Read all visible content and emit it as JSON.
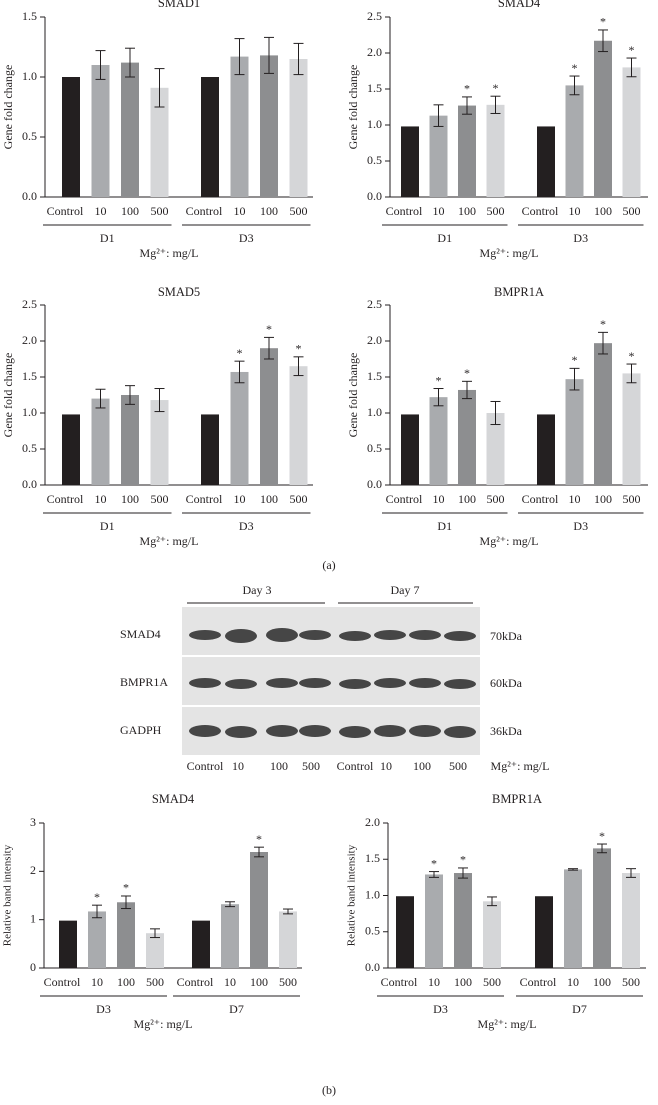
{
  "chart_data": [
    {
      "type": "bar",
      "title": "SMAD1",
      "ylabel": "Gene fold change",
      "xlabel": "Mg²⁺: mg/L",
      "categories": [
        "Control",
        "10",
        "100",
        "500",
        "Control",
        "10",
        "100",
        "500"
      ],
      "groups": [
        "D1",
        "D3"
      ],
      "values": [
        1.0,
        1.1,
        1.12,
        0.91,
        1.0,
        1.17,
        1.18,
        1.15
      ],
      "errors": [
        0,
        0.12,
        0.12,
        0.16,
        0,
        0.15,
        0.15,
        0.13
      ],
      "sig": [
        null,
        null,
        null,
        null,
        null,
        null,
        null,
        null
      ],
      "colors": [
        "#231f20",
        "#a9abae",
        "#8d8e90",
        "#d5d6d8",
        "#231f20",
        "#a9abae",
        "#8d8e90",
        "#d5d6d8"
      ],
      "ylim": [
        0,
        1.5
      ],
      "yticks": [
        {
          "value": 0,
          "label": "0.0"
        },
        {
          "value": 0.5,
          "label": "0.5"
        },
        {
          "value": 1,
          "label": "1.0"
        },
        {
          "value": 1.5,
          "label": "1.5"
        }
      ]
    },
    {
      "type": "bar",
      "title": "SMAD4",
      "ylabel": "Gene fold change",
      "xlabel": "Mg²⁺: mg/L",
      "categories": [
        "Control",
        "10",
        "100",
        "500",
        "Control",
        "10",
        "100",
        "500"
      ],
      "groups": [
        "D1",
        "D3"
      ],
      "values": [
        0.98,
        1.13,
        1.27,
        1.28,
        0.98,
        1.55,
        2.17,
        1.8
      ],
      "errors": [
        0,
        0.15,
        0.12,
        0.12,
        0,
        0.13,
        0.15,
        0.13
      ],
      "sig": [
        null,
        null,
        "*",
        "*",
        null,
        "*",
        "*",
        "*"
      ],
      "colors": [
        "#231f20",
        "#a9abae",
        "#8d8e90",
        "#d5d6d8",
        "#231f20",
        "#a9abae",
        "#8d8e90",
        "#d5d6d8"
      ],
      "ylim": [
        0,
        2.5
      ],
      "yticks": [
        {
          "value": 0,
          "label": "0.0"
        },
        {
          "value": 0.5,
          "label": "0.5"
        },
        {
          "value": 1,
          "label": "1.0"
        },
        {
          "value": 1.5,
          "label": "1.5"
        },
        {
          "value": 2,
          "label": "2.0"
        },
        {
          "value": 2.5,
          "label": "2.5"
        }
      ]
    },
    {
      "type": "bar",
      "title": "SMAD5",
      "ylabel": "Gene fold change",
      "xlabel": "Mg²⁺: mg/L",
      "categories": [
        "Control",
        "10",
        "100",
        "500",
        "Control",
        "10",
        "100",
        "500"
      ],
      "groups": [
        "D1",
        "D3"
      ],
      "values": [
        0.98,
        1.2,
        1.25,
        1.18,
        0.98,
        1.57,
        1.9,
        1.65
      ],
      "errors": [
        0,
        0.13,
        0.13,
        0.16,
        0,
        0.15,
        0.15,
        0.13
      ],
      "sig": [
        null,
        null,
        null,
        null,
        null,
        "*",
        "*",
        "*"
      ],
      "colors": [
        "#231f20",
        "#a9abae",
        "#8d8e90",
        "#d5d6d8",
        "#231f20",
        "#a9abae",
        "#8d8e90",
        "#d5d6d8"
      ],
      "ylim": [
        0,
        2.5
      ],
      "yticks": [
        {
          "value": 0,
          "label": "0.0"
        },
        {
          "value": 0.5,
          "label": "0.5"
        },
        {
          "value": 1,
          "label": "1.0"
        },
        {
          "value": 1.5,
          "label": "1.5"
        },
        {
          "value": 2,
          "label": "2.0"
        },
        {
          "value": 2.5,
          "label": "2.5"
        }
      ]
    },
    {
      "type": "bar",
      "title": "BMPR1A",
      "ylabel": "Gene fold change",
      "xlabel": "Mg²⁺: mg/L",
      "categories": [
        "Control",
        "10",
        "100",
        "500",
        "Control",
        "10",
        "100",
        "500"
      ],
      "groups": [
        "D1",
        "D3"
      ],
      "values": [
        0.98,
        1.22,
        1.32,
        1.0,
        0.98,
        1.47,
        1.97,
        1.55
      ],
      "errors": [
        0,
        0.12,
        0.12,
        0.16,
        0,
        0.15,
        0.15,
        0.13
      ],
      "sig": [
        null,
        "*",
        "*",
        null,
        null,
        "*",
        "*",
        "*"
      ],
      "colors": [
        "#231f20",
        "#a9abae",
        "#8d8e90",
        "#d5d6d8",
        "#231f20",
        "#a9abae",
        "#8d8e90",
        "#d5d6d8"
      ],
      "ylim": [
        0,
        2.5
      ],
      "yticks": [
        {
          "value": 0,
          "label": "0.0"
        },
        {
          "value": 0.5,
          "label": "0.5"
        },
        {
          "value": 1,
          "label": "1.0"
        },
        {
          "value": 1.5,
          "label": "1.5"
        },
        {
          "value": 2,
          "label": "2.0"
        },
        {
          "value": 2.5,
          "label": "2.5"
        }
      ]
    },
    {
      "type": "bar",
      "title": "SMAD4",
      "ylabel": "Relative band intensity",
      "xlabel": "Mg²⁺: mg/L",
      "categories": [
        "Control",
        "10",
        "100",
        "500",
        "Control",
        "10",
        "100",
        "500"
      ],
      "groups": [
        "D3",
        "D7"
      ],
      "values": [
        0.98,
        1.17,
        1.36,
        0.72,
        0.98,
        1.32,
        2.4,
        1.17
      ],
      "errors": [
        0,
        0.13,
        0.13,
        0.09,
        0,
        0.05,
        0.1,
        0.05
      ],
      "sig": [
        null,
        "*",
        "*",
        null,
        null,
        null,
        "*",
        null
      ],
      "colors": [
        "#231f20",
        "#a9abae",
        "#8d8e90",
        "#d5d6d8",
        "#231f20",
        "#a9abae",
        "#8d8e90",
        "#d5d6d8"
      ],
      "ylim": [
        0,
        3
      ],
      "yticks": [
        0,
        1,
        2,
        3
      ]
    },
    {
      "type": "bar",
      "title": "BMPR1A",
      "ylabel": "Relative band intensity",
      "xlabel": "Mg²⁺: mg/L",
      "categories": [
        "Control",
        "10",
        "100",
        "500",
        "Control",
        "10",
        "100",
        "500"
      ],
      "groups": [
        "D3",
        "D7"
      ],
      "values": [
        0.99,
        1.29,
        1.31,
        0.92,
        0.99,
        1.36,
        1.65,
        1.31
      ],
      "errors": [
        0,
        0.04,
        0.07,
        0.06,
        0,
        0.01,
        0.06,
        0.06
      ],
      "sig": [
        null,
        "*",
        "*",
        null,
        null,
        null,
        "*",
        null
      ],
      "colors": [
        "#231f20",
        "#a9abae",
        "#8d8e90",
        "#d5d6d8",
        "#231f20",
        "#a9abae",
        "#8d8e90",
        "#d5d6d8"
      ],
      "ylim": [
        0,
        2
      ],
      "yticks": [
        {
          "value": 0,
          "label": "0.0"
        },
        {
          "value": 0.5,
          "label": "0.5"
        },
        {
          "value": 1,
          "label": "1.0"
        },
        {
          "value": 1.5,
          "label": "1.5"
        },
        {
          "value": 2,
          "label": "2.0"
        }
      ]
    }
  ],
  "blot": {
    "days": [
      "Day 3",
      "Day 7"
    ],
    "rows": [
      {
        "label": "SMAD4",
        "size": "70kDa"
      },
      {
        "label": "BMPR1A",
        "size": "60kDa"
      },
      {
        "label": "GADPH",
        "size": "36kDa"
      }
    ],
    "lanes": [
      "Control",
      "10",
      "100",
      "500",
      "Control",
      "10",
      "100",
      "500"
    ],
    "xlabel": "Mg²⁺: mg/L"
  },
  "panels": [
    "(a)",
    "(b)"
  ]
}
